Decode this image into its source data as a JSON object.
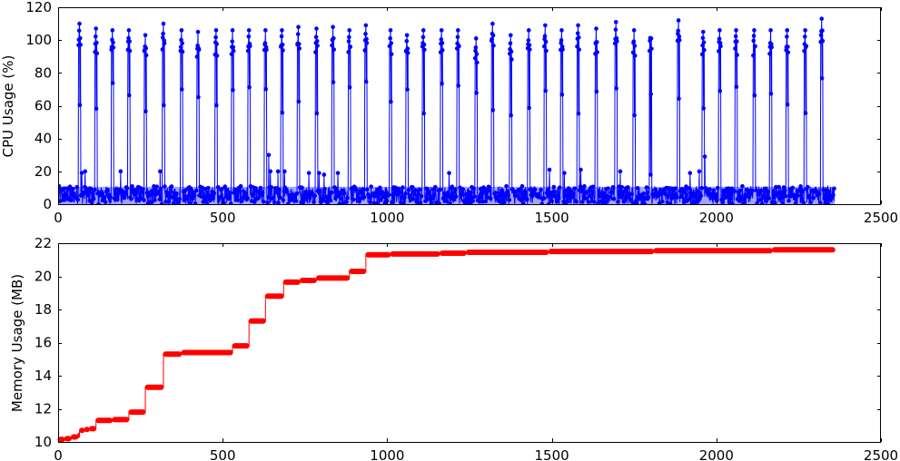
{
  "figure": {
    "background": "#ffffff"
  },
  "chart_data": [
    {
      "type": "line",
      "title": "",
      "xlabel": "",
      "ylabel": "CPU Usage (%)",
      "xlim": [
        0,
        2500
      ],
      "ylim": [
        0,
        120
      ],
      "xticks": [
        0,
        500,
        1000,
        1500,
        2000,
        2500
      ],
      "yticks": [
        0,
        20,
        40,
        60,
        80,
        100,
        120
      ],
      "grid": false,
      "legend": "none",
      "marker": "circle",
      "series": [
        {
          "color": "#0000ff",
          "n_samples": 2360,
          "baseline_range": [
            0,
            11
          ],
          "spike_times": [
            65,
            115,
            165,
            215,
            265,
            320,
            375,
            425,
            480,
            530,
            580,
            630,
            680,
            730,
            785,
            835,
            885,
            935,
            1010,
            1060,
            1110,
            1165,
            1215,
            1270,
            1320,
            1375,
            1430,
            1480,
            1530,
            1580,
            1635,
            1695,
            1750,
            1800,
            1885,
            1960,
            2010,
            2060,
            2115,
            2165,
            2215,
            2270,
            2320
          ],
          "spike_peaks": [
            110,
            107,
            106,
            106,
            103,
            110,
            106,
            105,
            106,
            106,
            106,
            106,
            106,
            108,
            107,
            108,
            106,
            109,
            106,
            103,
            106,
            106,
            106,
            101,
            110,
            103,
            106,
            109,
            106,
            109,
            107,
            111,
            106,
            109,
            112,
            105,
            106,
            106,
            106,
            106,
            106,
            106,
            113
          ],
          "isolated_points": [
            [
              72,
              19
            ],
            [
              82,
              20
            ],
            [
              190,
              20
            ],
            [
              310,
              20
            ],
            [
              640,
              30
            ],
            [
              645,
              20
            ],
            [
              668,
              20
            ],
            [
              688,
              20
            ],
            [
              762,
              19
            ],
            [
              793,
              19
            ],
            [
              808,
              18
            ],
            [
              850,
              19
            ],
            [
              1188,
              19
            ],
            [
              1493,
              21
            ],
            [
              1538,
              19
            ],
            [
              1588,
              21
            ],
            [
              1708,
              20
            ],
            [
              1800,
              18
            ],
            [
              1920,
              19
            ],
            [
              1948,
              20
            ],
            [
              1965,
              29
            ]
          ]
        }
      ]
    },
    {
      "type": "line",
      "title": "",
      "xlabel": "",
      "ylabel": "Memory Usage (MB)",
      "xlim": [
        0,
        2500
      ],
      "ylim": [
        10,
        22
      ],
      "xticks": [
        0,
        500,
        1000,
        1500,
        2000,
        2500
      ],
      "yticks": [
        10,
        12,
        14,
        16,
        18,
        20,
        22
      ],
      "grid": false,
      "legend": "none",
      "marker": "circle",
      "series": [
        {
          "color": "#ff0000",
          "steps": [
            [
              0,
              10.15
            ],
            [
              20,
              10.2
            ],
            [
              40,
              10.3
            ],
            [
              60,
              10.4
            ],
            [
              65,
              10.7
            ],
            [
              80,
              10.75
            ],
            [
              95,
              10.8
            ],
            [
              115,
              11.3
            ],
            [
              165,
              11.35
            ],
            [
              215,
              11.8
            ],
            [
              265,
              13.3
            ],
            [
              320,
              15.3
            ],
            [
              375,
              15.4
            ],
            [
              530,
              15.8
            ],
            [
              580,
              17.3
            ],
            [
              630,
              18.8
            ],
            [
              685,
              19.65
            ],
            [
              735,
              19.75
            ],
            [
              785,
              19.9
            ],
            [
              885,
              20.3
            ],
            [
              935,
              21.3
            ],
            [
              1010,
              21.35
            ],
            [
              1160,
              21.4
            ],
            [
              1240,
              21.45
            ],
            [
              1490,
              21.5
            ],
            [
              1810,
              21.55
            ],
            [
              2170,
              21.6
            ],
            [
              2360,
              21.6
            ]
          ]
        }
      ]
    }
  ]
}
